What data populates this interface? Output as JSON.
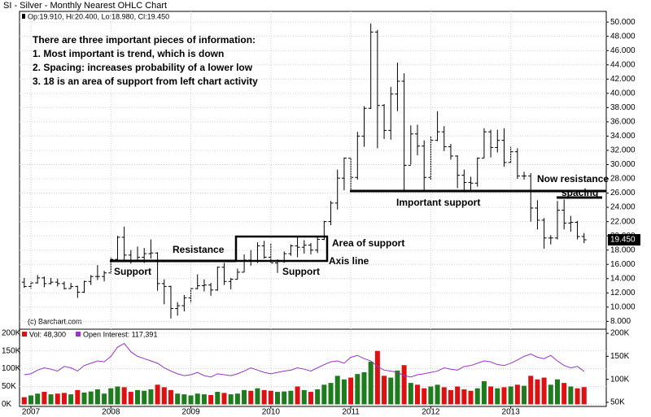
{
  "chart_data": [
    {
      "type": "ohlc",
      "title": "SI - Silver - Monthly Nearest OHLC Chart",
      "legend_text": "Op:19.910, Hi:20.400, Lo:18.980, Cl:19.450",
      "last_price_label": "19.450",
      "copyright": "(c) Barchart.com",
      "color": "#000000",
      "grid": true,
      "y_axis_side": "right",
      "ylim": [
        6.9,
        51.5
      ],
      "yticks": [
        {
          "value": 8,
          "label": "8.000"
        },
        {
          "value": 10,
          "label": "10.000"
        },
        {
          "value": 12,
          "label": "12.000"
        },
        {
          "value": 14,
          "label": "14.000"
        },
        {
          "value": 16,
          "label": "16.000"
        },
        {
          "value": 18,
          "label": "18.000"
        },
        {
          "value": 20,
          "label": "20.000"
        },
        {
          "value": 22,
          "label": "22.000"
        },
        {
          "value": 24,
          "label": "24.000"
        },
        {
          "value": 26,
          "label": "26.000"
        },
        {
          "value": 28,
          "label": "28.000"
        },
        {
          "value": 30,
          "label": "30.000"
        },
        {
          "value": 32,
          "label": "32.000"
        },
        {
          "value": 34,
          "label": "34.000"
        },
        {
          "value": 36,
          "label": "36.000"
        },
        {
          "value": 38,
          "label": "38.000"
        },
        {
          "value": 40,
          "label": "40.000"
        },
        {
          "value": 42,
          "label": "42.000"
        },
        {
          "value": 44,
          "label": "44.000"
        },
        {
          "value": 46,
          "label": "46.000"
        },
        {
          "value": 48,
          "label": "48.000"
        },
        {
          "value": 50,
          "label": "50.000"
        }
      ],
      "annotations": [
        "There are three important pieces of information:",
        "1.  Most important is trend, which is down",
        "2. Spacing: increases probability of a lower low",
        "3. 18 is an area of support from left chart activity",
        "Resistance",
        "Support",
        "Support",
        "Area of support",
        "Axis line",
        "Important support",
        "Now resistance",
        "spacing"
      ],
      "open": [
        13.5,
        12.9,
        13.4,
        14.1,
        13.3,
        13.5,
        13.3,
        12.6,
        12.9,
        12.1,
        13.6,
        14.3,
        14.3,
        14.8,
        16.7,
        19.8,
        17.3,
        16.5,
        17.0,
        17.5,
        17.6,
        13.3,
        12.9,
        9.8,
        10.2,
        11.3,
        12.6,
        13.0,
        13.1,
        12.4,
        15.6,
        13.6,
        13.9,
        14.9,
        16.6,
        16.5,
        18.6,
        17.0,
        16.2,
        16.4,
        17.5,
        18.6,
        18.4,
        18.7,
        18.0,
        19.5,
        22.0,
        24.6,
        28.1,
        30.9,
        28.2,
        34.0,
        37.9,
        48.6,
        38.3,
        34.8,
        39.9,
        41.7,
        29.9,
        34.3,
        32.6,
        28.2,
        33.4,
        34.6,
        32.5,
        31.2,
        28.5,
        27.5,
        27.4,
        30.9,
        34.6,
        32.4,
        33.4,
        30.3,
        31.8,
        28.4,
        28.4,
        23.9,
        22.2,
        19.7,
        19.7,
        23.6,
        21.8,
        21.9,
        19.91
      ],
      "high": [
        14.1,
        13.6,
        14.5,
        14.3,
        14.1,
        14.0,
        13.6,
        13.4,
        13.0,
        13.7,
        14.5,
        15.9,
        15.1,
        17.0,
        20.0,
        21.3,
        18.0,
        18.5,
        18.3,
        19.5,
        17.7,
        13.9,
        13.0,
        10.7,
        11.7,
        12.6,
        14.6,
        13.9,
        13.4,
        15.7,
        16.2,
        14.1,
        15.4,
        17.4,
        18.0,
        19.1,
        19.3,
        19.0,
        16.7,
        17.8,
        18.8,
        19.8,
        19.4,
        19.0,
        19.8,
        22.1,
        24.9,
        29.3,
        31.0,
        31.0,
        34.6,
        38.2,
        49.8,
        48.9,
        38.5,
        40.9,
        44.3,
        42.8,
        35.5,
        35.6,
        33.4,
        34.0,
        37.5,
        35.4,
        32.9,
        31.3,
        29.3,
        28.3,
        31.0,
        35.1,
        34.9,
        34.9,
        35.1,
        32.5,
        32.3,
        29.0,
        28.8,
        25.0,
        22.5,
        20.1,
        24.9,
        25.1,
        22.8,
        22.1,
        20.4
      ],
      "low": [
        12.7,
        12.6,
        13.3,
        12.8,
        13.2,
        12.9,
        12.5,
        12.6,
        11.3,
        12.0,
        13.1,
        13.8,
        13.6,
        14.7,
        16.5,
        16.6,
        16.1,
        16.3,
        16.2,
        16.8,
        12.3,
        10.4,
        8.4,
        8.8,
        9.4,
        10.6,
        12.5,
        12.2,
        11.6,
        12.3,
        13.1,
        12.5,
        13.9,
        14.9,
        15.8,
        16.2,
        16.8,
        16.2,
        14.8,
        16.2,
        17.2,
        17.0,
        17.5,
        17.4,
        17.6,
        19.4,
        21.5,
        23.7,
        26.4,
        26.3,
        27.9,
        32.5,
        37.8,
        32.3,
        33.6,
        33.5,
        37.5,
        26.1,
        30.0,
        31.3,
        26.2,
        27.9,
        33.3,
        31.9,
        30.7,
        26.7,
        26.1,
        26.3,
        26.9,
        30.9,
        31.0,
        31.7,
        29.7,
        30.2,
        28.0,
        27.9,
        22.0,
        20.9,
        18.2,
        18.8,
        19.5,
        20.9,
        20.6,
        19.5,
        18.98
      ],
      "close": [
        12.9,
        13.4,
        14.1,
        13.3,
        13.5,
        13.3,
        12.6,
        12.9,
        12.1,
        13.6,
        14.3,
        14.3,
        14.8,
        16.7,
        19.8,
        17.3,
        16.5,
        17.0,
        17.5,
        17.6,
        13.3,
        12.9,
        9.8,
        10.2,
        11.3,
        12.6,
        13.0,
        13.1,
        12.4,
        15.6,
        13.6,
        13.9,
        14.9,
        16.6,
        16.5,
        18.6,
        17.0,
        16.2,
        16.4,
        17.5,
        18.6,
        18.4,
        18.7,
        18.0,
        19.5,
        22.0,
        24.6,
        28.1,
        30.9,
        28.2,
        34.0,
        37.9,
        48.6,
        38.3,
        34.8,
        39.9,
        41.7,
        29.9,
        34.3,
        32.6,
        28.2,
        33.4,
        34.6,
        32.5,
        31.2,
        28.5,
        27.5,
        27.4,
        30.9,
        34.6,
        32.4,
        33.4,
        30.3,
        31.8,
        28.4,
        28.4,
        23.9,
        22.2,
        19.7,
        19.7,
        23.6,
        21.8,
        21.9,
        19.9,
        19.45
      ]
    },
    {
      "type": "volume",
      "categories": [
        null,
        "2007",
        null,
        null,
        null,
        null,
        null,
        null,
        null,
        null,
        null,
        null,
        null,
        "2008",
        null,
        null,
        null,
        null,
        null,
        null,
        null,
        null,
        null,
        null,
        null,
        "2009",
        null,
        null,
        null,
        null,
        null,
        null,
        null,
        null,
        null,
        null,
        null,
        "2010",
        null,
        null,
        null,
        null,
        null,
        null,
        null,
        null,
        null,
        null,
        null,
        "2011",
        null,
        null,
        null,
        null,
        null,
        null,
        null,
        null,
        null,
        null,
        null,
        "2012",
        null,
        null,
        null,
        null,
        null,
        null,
        null,
        null,
        null,
        null,
        null,
        "2013",
        null,
        null,
        null,
        null,
        null,
        null,
        null,
        null,
        null,
        null,
        null
      ],
      "up_color": "#1e7b1e",
      "down_color": "#dd1111",
      "grid": true,
      "ylim": [
        -6000,
        211000
      ],
      "yticks": [
        {
          "value": 0,
          "label": "0K"
        },
        {
          "value": 50000,
          "label": "50K"
        },
        {
          "value": 100000,
          "label": "100K"
        },
        {
          "value": 150000,
          "label": "150K"
        },
        {
          "value": 200000,
          "label": "200K"
        }
      ],
      "y2lim": [
        41000,
        209000
      ],
      "y2ticks": [
        {
          "value": 50000,
          "label": "50K"
        },
        {
          "value": 100000,
          "label": "100K"
        },
        {
          "value": 150000,
          "label": "150K"
        },
        {
          "value": 200000,
          "label": "200K"
        }
      ],
      "series": [
        {
          "name": "Vol: 48,300",
          "color": "#dd1111",
          "values": [
            20000,
            25000,
            30000,
            35000,
            28000,
            30000,
            32000,
            28000,
            40000,
            33000,
            36000,
            42000,
            30000,
            45000,
            50000,
            48000,
            35000,
            40000,
            38000,
            42000,
            55000,
            48000,
            40000,
            30000,
            28000,
            25000,
            30000,
            28000,
            26000,
            35000,
            32000,
            28000,
            30000,
            40000,
            38000,
            45000,
            40000,
            38000,
            35000,
            36000,
            38000,
            50000,
            40000,
            35000,
            42000,
            55000,
            60000,
            80000,
            70000,
            75000,
            85000,
            90000,
            120000,
            150000,
            80000,
            75000,
            95000,
            110000,
            60000,
            55000,
            45000,
            50000,
            55000,
            48000,
            40000,
            50000,
            42000,
            38000,
            45000,
            65000,
            50000,
            45000,
            48000,
            50000,
            55000,
            52000,
            80000,
            70000,
            75000,
            55000,
            70000,
            60000,
            50000,
            45000,
            48300
          ]
        },
        {
          "name": "Open Interest: 117,391",
          "color": "#9933cc",
          "axis": "y2",
          "values": [
            110000,
            112000,
            120000,
            125000,
            122000,
            118000,
            128000,
            125000,
            118000,
            130000,
            135000,
            140000,
            138000,
            150000,
            170000,
            178000,
            160000,
            150000,
            145000,
            140000,
            135000,
            125000,
            118000,
            112000,
            108000,
            110000,
            115000,
            108000,
            105000,
            112000,
            110000,
            108000,
            112000,
            118000,
            125000,
            120000,
            115000,
            112000,
            115000,
            118000,
            120000,
            125000,
            122000,
            118000,
            125000,
            132000,
            138000,
            140000,
            135000,
            148000,
            152000,
            145000,
            140000,
            128000,
            120000,
            118000,
            115000,
            108000,
            105000,
            110000,
            112000,
            115000,
            118000,
            125000,
            122000,
            120000,
            128000,
            130000,
            135000,
            140000,
            138000,
            132000,
            130000,
            135000,
            142000,
            150000,
            155000,
            148000,
            145000,
            152000,
            140000,
            130000,
            125000,
            128000,
            117391
          ]
        }
      ]
    }
  ]
}
